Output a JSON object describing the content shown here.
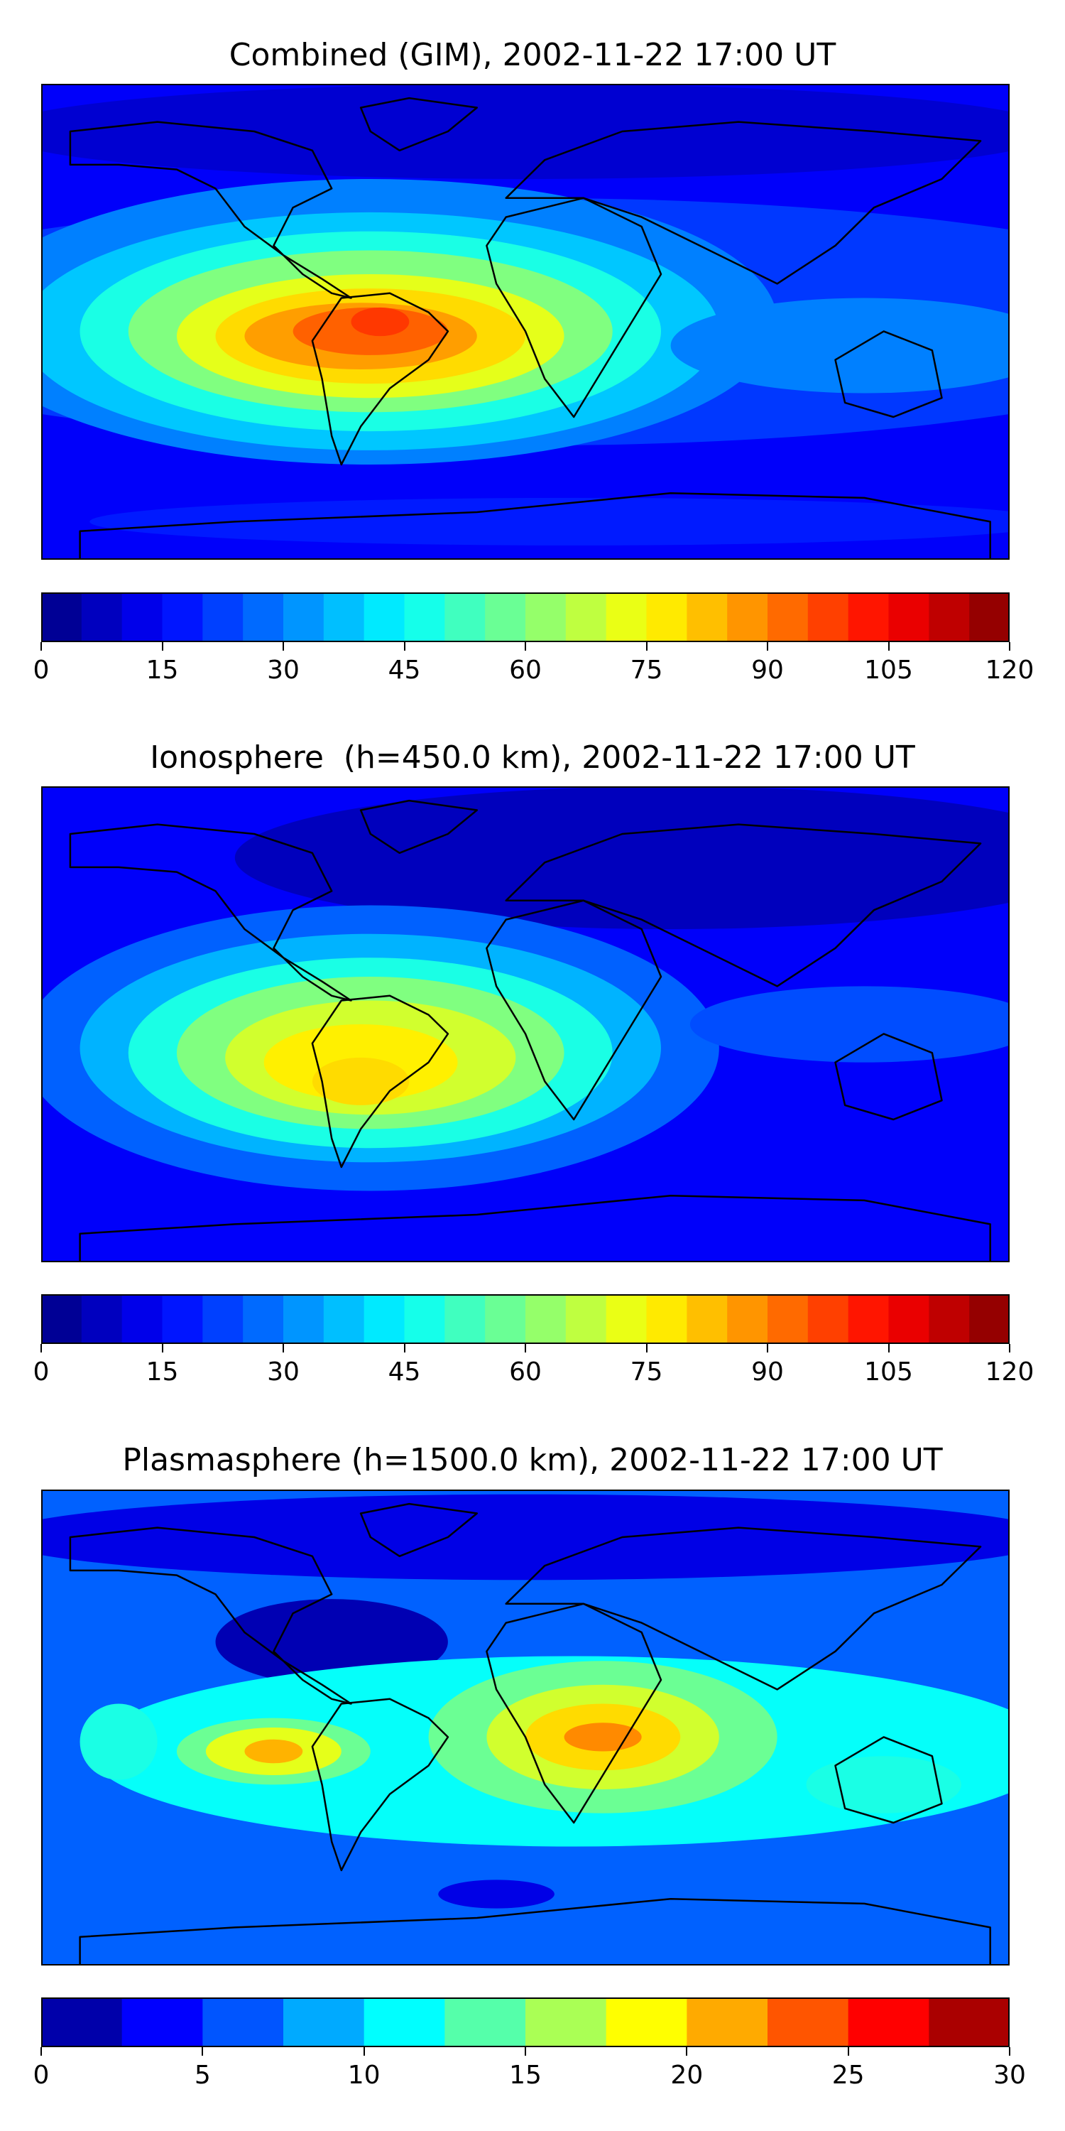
{
  "panels": [
    {
      "title": "Combined (GIM), 2002-11-22 17:00 UT",
      "colorbar": {
        "min": 0,
        "max": 120,
        "levels": 24,
        "ticks": [
          "0",
          "15",
          "30",
          "45",
          "60",
          "75",
          "90",
          "105",
          "120"
        ]
      },
      "field": "combined"
    },
    {
      "title": "Ionosphere  (h=450.0 km), 2002-11-22 17:00 UT",
      "colorbar": {
        "min": 0,
        "max": 120,
        "levels": 24,
        "ticks": [
          "0",
          "15",
          "30",
          "45",
          "60",
          "75",
          "90",
          "105",
          "120"
        ]
      },
      "field": "ionosphere"
    },
    {
      "title": "Plasmasphere (h=1500.0 km), 2002-11-22 17:00 UT",
      "colorbar": {
        "min": 0,
        "max": 30,
        "levels": 12,
        "ticks": [
          "0",
          "5",
          "10",
          "15",
          "20",
          "25",
          "30"
        ]
      },
      "field": "plasmasphere"
    }
  ],
  "colormap": "jet",
  "coastline_color": "#000000"
}
